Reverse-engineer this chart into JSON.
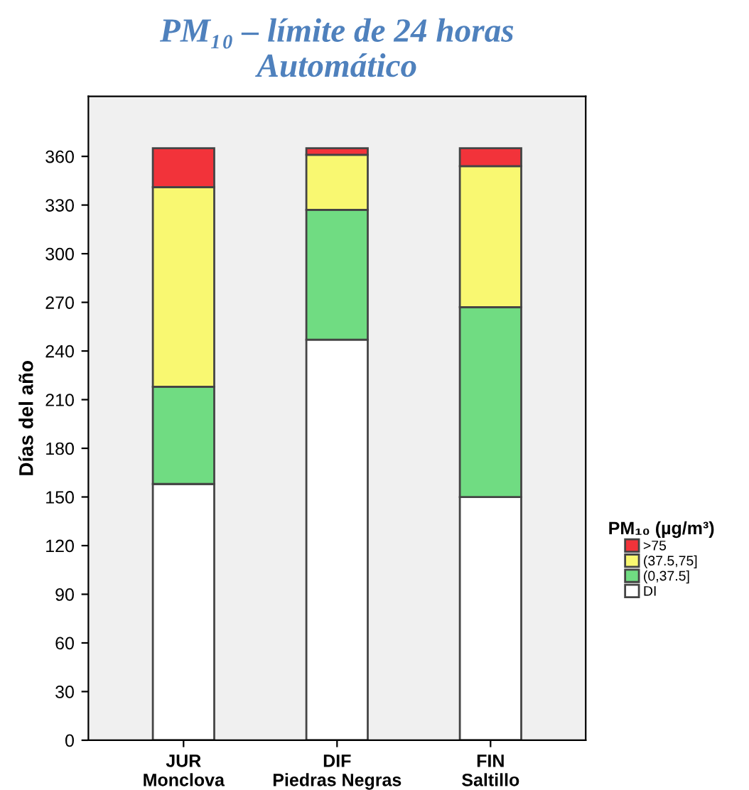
{
  "chart_data": {
    "type": "bar",
    "stacked": true,
    "title": "PM₁₀ – límite de 24 horas\nAutomático",
    "ylabel": "Días del año",
    "legend_title": "PM₁₀ (µg/m³)",
    "categories": [
      "JUR\nMonclova",
      "DIF\nPiedras Negras",
      "FIN\nSaltillo"
    ],
    "series": [
      {
        "name": "DI",
        "color": "#ffffff",
        "values": [
          158,
          247,
          150
        ]
      },
      {
        "name": "(0,37.5]",
        "color": "#70dc82",
        "values": [
          60,
          80,
          117
        ]
      },
      {
        "name": "(37.5,75]",
        "color": "#f9f871",
        "values": [
          123,
          34,
          87
        ]
      },
      {
        "name": ">75",
        "color": "#f2333a",
        "values": [
          24,
          4,
          11
        ]
      }
    ],
    "ylim": [
      0,
      397
    ],
    "yticks": [
      0,
      30,
      60,
      90,
      120,
      150,
      180,
      210,
      240,
      270,
      300,
      330,
      360
    ],
    "grid": false,
    "legend": "right"
  }
}
